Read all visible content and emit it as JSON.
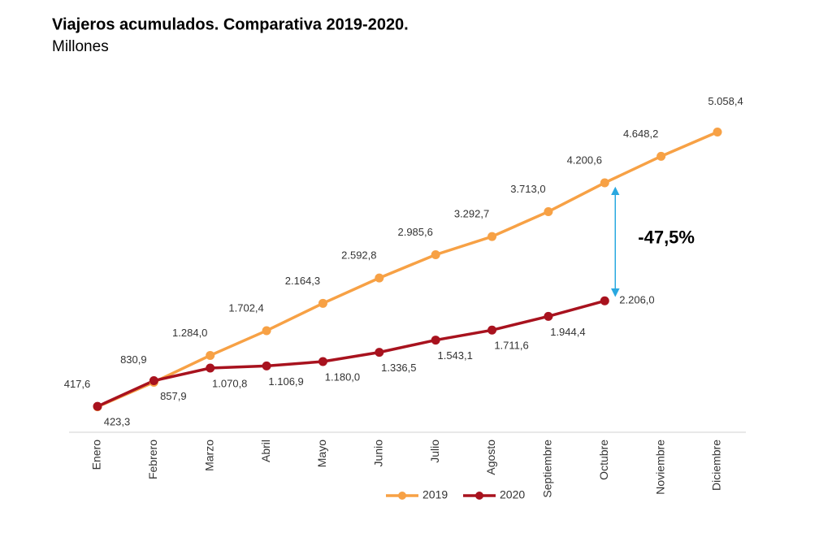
{
  "chart_data": {
    "type": "line",
    "title": "Viajeros acumulados. Comparativa 2019-2020.",
    "subtitle": "Millones",
    "categories": [
      "Enero",
      "Febrero",
      "Marzo",
      "Abril",
      "Mayo",
      "Junio",
      "Julio",
      "Agosto",
      "Septiembre",
      "Octubre",
      "Noviembre",
      "Diciembre"
    ],
    "series": [
      {
        "name": "2019",
        "color": "#f7a145",
        "values": [
          417.6,
          830.9,
          1284.0,
          1702.4,
          2164.3,
          2592.8,
          2985.6,
          3292.7,
          3713.0,
          4200.6,
          4648.2,
          5058.4
        ],
        "value_labels": [
          "417,6",
          "830,9",
          "1.284,0",
          "1.702,4",
          "2.164,3",
          "2.592,8",
          "2.985,6",
          "3.292,7",
          "3.713,0",
          "4.200,6",
          "4.648,2",
          "5.058,4"
        ]
      },
      {
        "name": "2020",
        "color": "#a8121e",
        "values": [
          423.3,
          857.9,
          1070.8,
          1106.9,
          1180.0,
          1336.5,
          1543.1,
          1711.6,
          1944.4,
          2206.0,
          null,
          null
        ],
        "value_labels": [
          "423,3",
          "857,9",
          "1.070,8",
          "1.106,9",
          "1.180,0",
          "1.336,5",
          "1.543,1",
          "1.711,6",
          "1.944,4",
          "2.206,0",
          null,
          null
        ]
      }
    ],
    "annotation": "-47,5%",
    "ylim": [
      0,
      5600
    ],
    "legend": "bottom"
  }
}
